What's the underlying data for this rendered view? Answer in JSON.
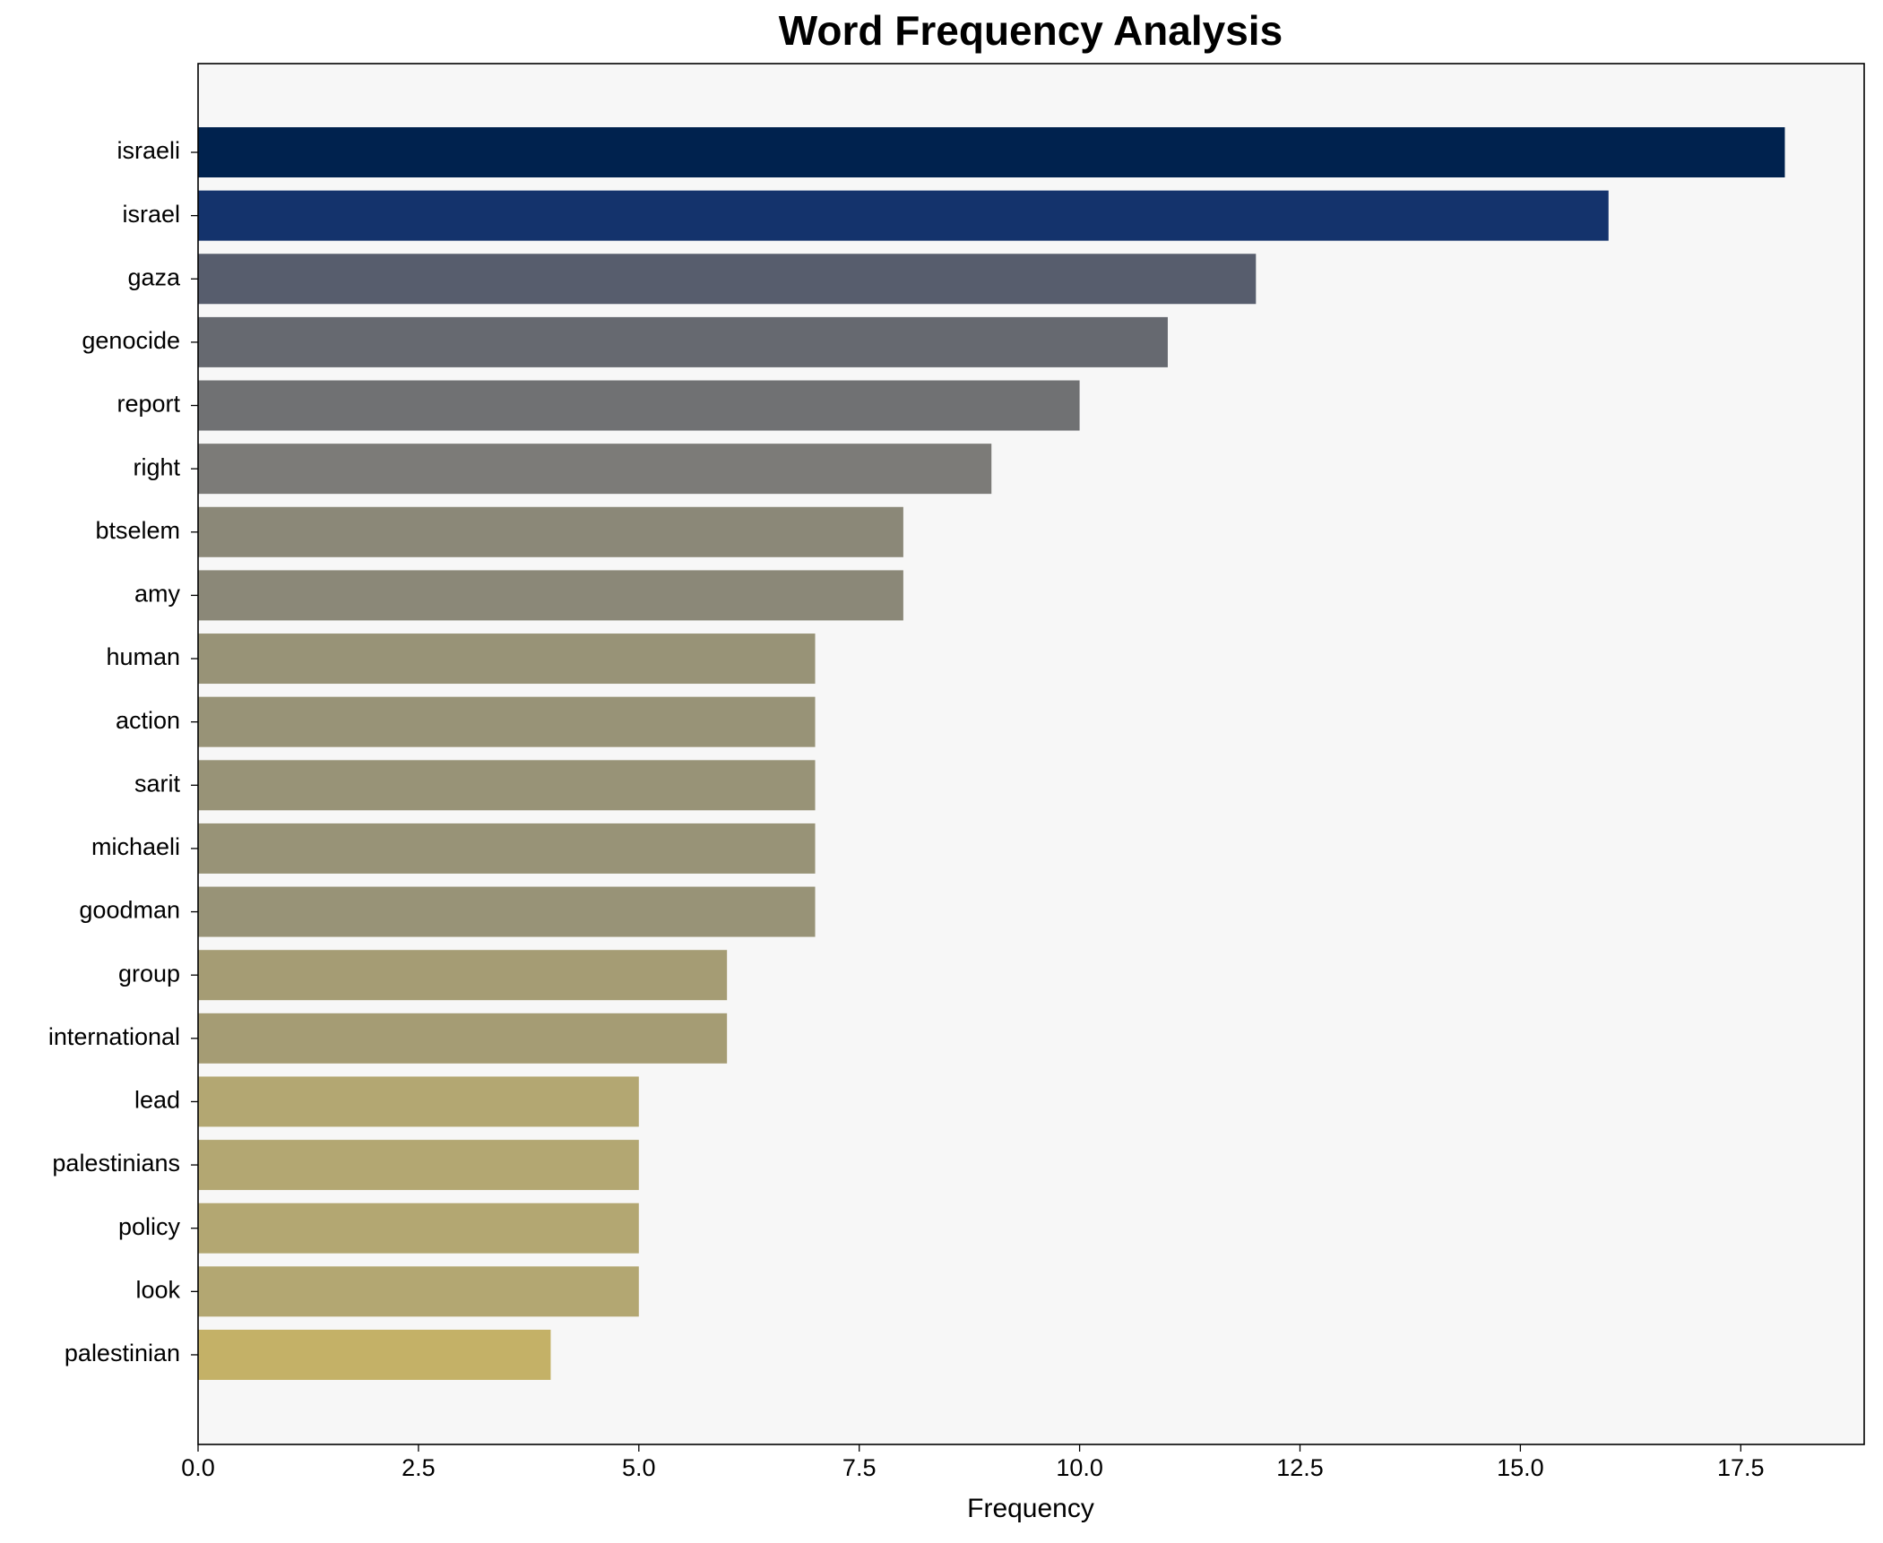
{
  "chart_data": {
    "type": "barh",
    "title": "Word Frequency Analysis",
    "xlabel": "Frequency",
    "categories": [
      "israeli",
      "israel",
      "gaza",
      "genocide",
      "report",
      "right",
      "btselem",
      "amy",
      "human",
      "action",
      "sarit",
      "michaeli",
      "goodman",
      "group",
      "international",
      "lead",
      "palestinians",
      "policy",
      "look",
      "palestinian"
    ],
    "values": [
      18,
      16,
      12,
      11,
      10,
      9,
      8,
      8,
      7,
      7,
      7,
      7,
      7,
      6,
      6,
      5,
      5,
      5,
      5,
      4
    ],
    "colors": [
      "#00224e",
      "#14336c",
      "#575d6d",
      "#666970",
      "#707173",
      "#7c7b78",
      "#8b8878",
      "#8b8878",
      "#989377",
      "#989377",
      "#989377",
      "#989377",
      "#989377",
      "#a59c74",
      "#a59c74",
      "#b3a772",
      "#b3a772",
      "#b3a772",
      "#b3a772",
      "#c4b167"
    ],
    "xlim": [
      0,
      18.9
    ],
    "xticks": [
      {
        "value": 0,
        "label": "0.0"
      },
      2.5,
      {
        "value": 5,
        "label": "5.0"
      },
      7.5,
      {
        "value": 10,
        "label": "10.0"
      },
      12.5,
      {
        "value": 15,
        "label": "15.0"
      },
      17.5
    ]
  }
}
